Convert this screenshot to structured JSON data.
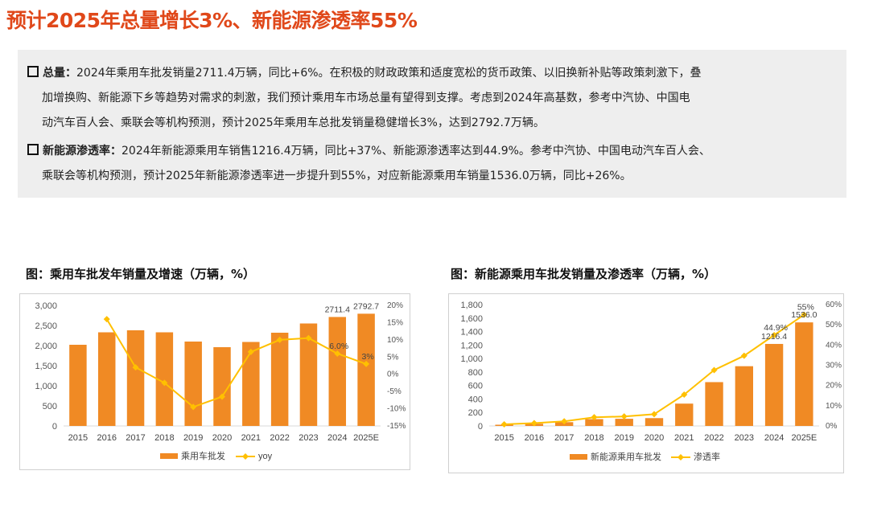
{
  "page": {
    "title": "预计2025年总量增长3%、新能源渗透率55%"
  },
  "summary": {
    "p1": {
      "label": "总量：",
      "line1": "2024年乘用车批发销量2711.4万辆，同比+6%。在积极的财政政策和适度宽松的货币政策、以旧换新补贴等政策刺激下，叠",
      "line2": "加增换购、新能源下乡等趋势对需求的刺激，我们预计乘用车市场总量有望得到支撑。考虑到2024年高基数，参考中汽协、中国电",
      "line3": "动汽车百人会、乘联会等机构预测，预计2025年乘用车总批发销量稳健增长3%，达到2792.7万辆。"
    },
    "p2": {
      "label": "新能源渗透率：",
      "line1": "2024年新能源乘用车销售1216.4万辆，同比+37%、新能源渗透率达到44.9%。参考中汽协、中国电动汽车百人会、",
      "line2": "乘联会等机构预测，预计2025年新能源渗透率进一步提升到55%，对应新能源乘用车销量1536.0万辆，同比+26%。"
    }
  },
  "colors": {
    "accent": "#e0481a",
    "bar": "#f08a24",
    "line": "#ffc000"
  },
  "chart_data": [
    {
      "type": "bar",
      "title": "图：乘用车批发年销量及增速（万辆，%）",
      "categories": [
        "2015",
        "2016",
        "2017",
        "2018",
        "2019",
        "2020",
        "2021",
        "2022",
        "2023",
        "2024",
        "2025E"
      ],
      "series": [
        {
          "name": "乘用车批发",
          "kind": "bar",
          "axis": "left",
          "values": [
            2020,
            2330,
            2380,
            2330,
            2100,
            1960,
            2090,
            2320,
            2550,
            2711.4,
            2792.7
          ]
        },
        {
          "name": "yoy",
          "kind": "line",
          "axis": "right",
          "values": [
            null,
            16,
            2,
            -2.5,
            -9.5,
            -6.5,
            6.5,
            10,
            10.5,
            6.0,
            3
          ]
        }
      ],
      "data_labels": [
        {
          "series": 0,
          "index": 9,
          "text": "2711.4"
        },
        {
          "series": 0,
          "index": 10,
          "text": "2792.7"
        },
        {
          "series": 1,
          "index": 9,
          "text": "6.0%"
        },
        {
          "series": 1,
          "index": 10,
          "text": "3%"
        }
      ],
      "ylim": [
        0,
        3000
      ],
      "yticks": [
        "0",
        "500",
        "1,000",
        "1,500",
        "2,000",
        "2,500",
        "3,000"
      ],
      "y2lim": [
        -15,
        20
      ],
      "y2ticks": [
        "-15%",
        "-10%",
        "-5%",
        "0%",
        "5%",
        "10%",
        "15%",
        "20%"
      ],
      "legend": "bottom"
    },
    {
      "type": "bar",
      "title": "图：新能源乘用车批发销量及渗透率（万辆，%）",
      "categories": [
        "2015",
        "2016",
        "2017",
        "2018",
        "2019",
        "2020",
        "2021",
        "2022",
        "2023",
        "2024",
        "2025E"
      ],
      "series": [
        {
          "name": "新能源乘用车批发",
          "kind": "bar",
          "axis": "left",
          "values": [
            18,
            33,
            56,
            101,
            106,
            116,
            331,
            650,
            886,
            1216.4,
            1536.0
          ]
        },
        {
          "name": "渗透率",
          "kind": "line",
          "axis": "right",
          "values": [
            0.8,
            1.4,
            2.3,
            4.3,
            4.7,
            5.8,
            15.5,
            27.6,
            34.7,
            44.9,
            55
          ]
        }
      ],
      "data_labels": [
        {
          "series": 0,
          "index": 9,
          "text": "1216.4"
        },
        {
          "series": 0,
          "index": 10,
          "text": "1536.0"
        },
        {
          "series": 1,
          "index": 9,
          "text": "44.9%"
        },
        {
          "series": 1,
          "index": 10,
          "text": "55%"
        }
      ],
      "ylim": [
        0,
        1800
      ],
      "yticks": [
        "0",
        "200",
        "400",
        "600",
        "800",
        "1,000",
        "1,200",
        "1,400",
        "1,600",
        "1,800"
      ],
      "y2lim": [
        0,
        60
      ],
      "y2ticks": [
        "0%",
        "10%",
        "20%",
        "30%",
        "40%",
        "50%",
        "60%"
      ],
      "legend": "bottom"
    }
  ]
}
